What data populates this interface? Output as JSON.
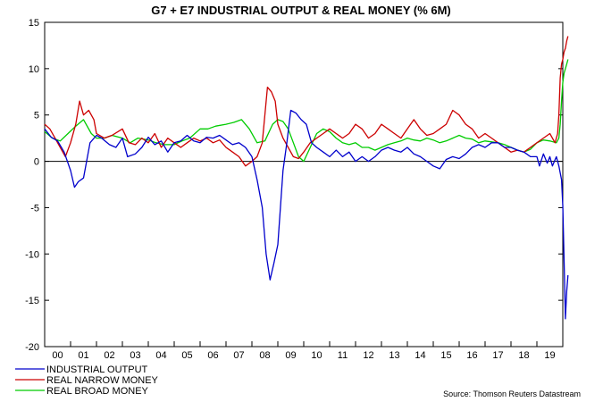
{
  "chart_data": {
    "type": "line",
    "title": "G7 + E7 INDUSTRIAL OUTPUT & REAL MONEY (% 6M)",
    "source": "Source: Thomson Reuters Datastream",
    "xlabel": "",
    "ylabel": "",
    "ylim": [
      -20,
      15
    ],
    "xlim": [
      2000.0,
      2020.0
    ],
    "yticks": [
      15,
      10,
      5,
      0,
      -5,
      -10,
      -15,
      -20
    ],
    "xtick_labels": [
      "00",
      "01",
      "02",
      "03",
      "04",
      "05",
      "06",
      "07",
      "08",
      "09",
      "10",
      "11",
      "12",
      "13",
      "14",
      "15",
      "16",
      "17",
      "18",
      "19"
    ],
    "zero_line": true,
    "grid": false,
    "legend_position": "bottom-left",
    "series": [
      {
        "name": "INDUSTRIAL OUTPUT",
        "color": "#0000cc",
        "x": [
          2000.0,
          2000.25,
          2000.5,
          2000.75,
          2001.0,
          2001.15,
          2001.3,
          2001.5,
          2001.75,
          2002.0,
          2002.2,
          2002.5,
          2002.75,
          2003.0,
          2003.2,
          2003.5,
          2003.75,
          2004.0,
          2004.25,
          2004.5,
          2004.75,
          2005.0,
          2005.25,
          2005.5,
          2005.75,
          2006.0,
          2006.25,
          2006.5,
          2006.75,
          2007.0,
          2007.25,
          2007.5,
          2007.75,
          2008.0,
          2008.2,
          2008.4,
          2008.55,
          2008.7,
          2008.85,
          2009.0,
          2009.1,
          2009.2,
          2009.35,
          2009.5,
          2009.7,
          2009.9,
          2010.1,
          2010.3,
          2010.5,
          2010.75,
          2011.0,
          2011.25,
          2011.5,
          2011.75,
          2012.0,
          2012.25,
          2012.5,
          2012.75,
          2013.0,
          2013.25,
          2013.5,
          2013.75,
          2014.0,
          2014.25,
          2014.5,
          2014.75,
          2015.0,
          2015.25,
          2015.5,
          2015.75,
          2016.0,
          2016.25,
          2016.5,
          2016.75,
          2017.0,
          2017.25,
          2017.5,
          2017.75,
          2018.0,
          2018.25,
          2018.5,
          2018.75,
          2019.0,
          2019.1,
          2019.25,
          2019.4,
          2019.5,
          2019.6,
          2019.75,
          2019.85,
          2019.95,
          2020.0,
          2020.05,
          2020.1,
          2020.15,
          2020.2
        ],
        "values": [
          3.5,
          2.6,
          2.2,
          1.0,
          -1.0,
          -2.8,
          -2.2,
          -1.8,
          2.0,
          2.8,
          2.5,
          1.8,
          1.5,
          2.5,
          0.5,
          0.8,
          1.5,
          2.6,
          1.8,
          2.2,
          1.0,
          2.0,
          2.2,
          2.8,
          2.2,
          2.0,
          2.6,
          2.5,
          2.8,
          2.3,
          1.8,
          2.0,
          1.5,
          0.5,
          -2.0,
          -5.0,
          -10.0,
          -12.8,
          -11.0,
          -9.0,
          -5.0,
          -1.0,
          2.0,
          5.5,
          5.2,
          4.5,
          4.0,
          2.0,
          1.5,
          1.0,
          0.5,
          1.2,
          0.5,
          1.0,
          0.0,
          0.5,
          0.0,
          0.5,
          1.2,
          1.5,
          1.2,
          1.0,
          1.5,
          0.8,
          0.5,
          0.0,
          -0.5,
          -0.8,
          0.2,
          0.5,
          0.3,
          0.8,
          1.5,
          1.8,
          1.5,
          2.0,
          2.0,
          1.5,
          1.5,
          1.2,
          1.0,
          0.5,
          0.5,
          -0.5,
          0.8,
          -0.2,
          0.5,
          -0.5,
          0.5,
          -0.5,
          -2.0,
          -4.8,
          -10.5,
          -17.0,
          -14.0,
          -12.3
        ]
      },
      {
        "name": "REAL NARROW MONEY",
        "color": "#cc0000",
        "x": [
          2000.0,
          2000.2,
          2000.4,
          2000.6,
          2000.8,
          2001.0,
          2001.2,
          2001.35,
          2001.5,
          2001.7,
          2001.9,
          2002.0,
          2002.3,
          2002.6,
          2003.0,
          2003.25,
          2003.5,
          2003.75,
          2004.0,
          2004.25,
          2004.5,
          2004.75,
          2005.0,
          2005.25,
          2005.5,
          2005.75,
          2006.0,
          2006.25,
          2006.5,
          2006.75,
          2007.0,
          2007.25,
          2007.5,
          2007.75,
          2008.0,
          2008.2,
          2008.4,
          2008.5,
          2008.6,
          2008.75,
          2008.9,
          2009.0,
          2009.2,
          2009.4,
          2009.6,
          2009.8,
          2010.0,
          2010.25,
          2010.5,
          2010.75,
          2011.0,
          2011.25,
          2011.5,
          2011.75,
          2012.0,
          2012.25,
          2012.5,
          2012.75,
          2013.0,
          2013.25,
          2013.5,
          2013.75,
          2014.0,
          2014.25,
          2014.5,
          2014.75,
          2015.0,
          2015.25,
          2015.5,
          2015.75,
          2016.0,
          2016.25,
          2016.5,
          2016.75,
          2017.0,
          2017.25,
          2017.5,
          2017.75,
          2018.0,
          2018.25,
          2018.5,
          2018.75,
          2019.0,
          2019.25,
          2019.5,
          2019.7,
          2019.8,
          2019.85,
          2019.9,
          2019.95,
          2020.0,
          2020.05,
          2020.1,
          2020.15,
          2020.2
        ],
        "values": [
          4.0,
          3.5,
          2.5,
          1.5,
          0.5,
          2.0,
          4.0,
          6.5,
          5.0,
          5.5,
          4.5,
          3.0,
          2.5,
          2.8,
          3.5,
          2.0,
          1.8,
          2.5,
          2.0,
          3.0,
          1.5,
          2.5,
          2.0,
          1.5,
          2.0,
          2.5,
          2.2,
          2.5,
          2.0,
          2.3,
          1.5,
          1.0,
          0.5,
          -0.5,
          0.0,
          0.5,
          2.0,
          5.0,
          8.0,
          7.5,
          6.5,
          4.0,
          2.5,
          1.5,
          0.5,
          0.3,
          1.0,
          2.0,
          2.5,
          3.0,
          3.5,
          3.0,
          2.5,
          3.0,
          4.0,
          3.5,
          2.5,
          3.0,
          4.0,
          3.5,
          3.0,
          2.5,
          3.5,
          4.5,
          3.5,
          2.8,
          3.0,
          3.5,
          4.0,
          5.5,
          5.0,
          4.0,
          3.5,
          2.5,
          3.0,
          2.5,
          2.0,
          1.5,
          1.0,
          1.2,
          1.0,
          1.5,
          2.0,
          2.5,
          3.0,
          2.0,
          3.0,
          5.0,
          9.0,
          10.5,
          11.0,
          11.8,
          12.2,
          13.0,
          13.5
        ]
      },
      {
        "name": "REAL BROAD MONEY",
        "color": "#00cc00",
        "x": [
          2000.0,
          2000.3,
          2000.6,
          2000.9,
          2001.2,
          2001.5,
          2001.8,
          2002.0,
          2002.3,
          2002.6,
          2003.0,
          2003.3,
          2003.6,
          2004.0,
          2004.3,
          2004.6,
          2005.0,
          2005.3,
          2005.6,
          2006.0,
          2006.3,
          2006.6,
          2007.0,
          2007.3,
          2007.6,
          2007.9,
          2008.2,
          2008.5,
          2008.8,
          2009.0,
          2009.2,
          2009.4,
          2009.6,
          2009.8,
          2010.0,
          2010.25,
          2010.5,
          2010.75,
          2011.0,
          2011.25,
          2011.5,
          2011.75,
          2012.0,
          2012.25,
          2012.5,
          2012.75,
          2013.0,
          2013.25,
          2013.5,
          2013.75,
          2014.0,
          2014.25,
          2014.5,
          2014.75,
          2015.0,
          2015.25,
          2015.5,
          2015.75,
          2016.0,
          2016.25,
          2016.5,
          2016.75,
          2017.0,
          2017.25,
          2017.5,
          2017.75,
          2018.0,
          2018.25,
          2018.5,
          2018.75,
          2019.0,
          2019.25,
          2019.5,
          2019.75,
          2019.85,
          2019.9,
          2019.95,
          2020.0,
          2020.05,
          2020.1,
          2020.15,
          2020.2
        ],
        "values": [
          3.2,
          2.5,
          2.2,
          3.0,
          3.8,
          4.5,
          3.0,
          2.5,
          2.5,
          2.8,
          2.5,
          2.0,
          2.5,
          2.3,
          2.0,
          1.8,
          1.8,
          2.2,
          2.5,
          3.5,
          3.5,
          3.8,
          4.0,
          4.2,
          4.5,
          3.5,
          2.0,
          2.2,
          4.0,
          4.5,
          4.3,
          3.5,
          2.0,
          0.5,
          0.0,
          1.5,
          3.0,
          3.5,
          3.2,
          2.5,
          2.0,
          1.8,
          2.0,
          1.5,
          1.5,
          1.2,
          1.5,
          1.8,
          2.0,
          2.2,
          2.5,
          2.3,
          2.2,
          2.5,
          2.3,
          2.0,
          2.2,
          2.5,
          2.8,
          2.5,
          2.4,
          2.0,
          2.2,
          2.1,
          2.0,
          1.8,
          1.5,
          1.2,
          1.0,
          1.3,
          2.0,
          2.3,
          2.2,
          2.0,
          2.5,
          4.0,
          6.5,
          8.5,
          9.5,
          10.0,
          10.5,
          11.0
        ]
      }
    ]
  }
}
